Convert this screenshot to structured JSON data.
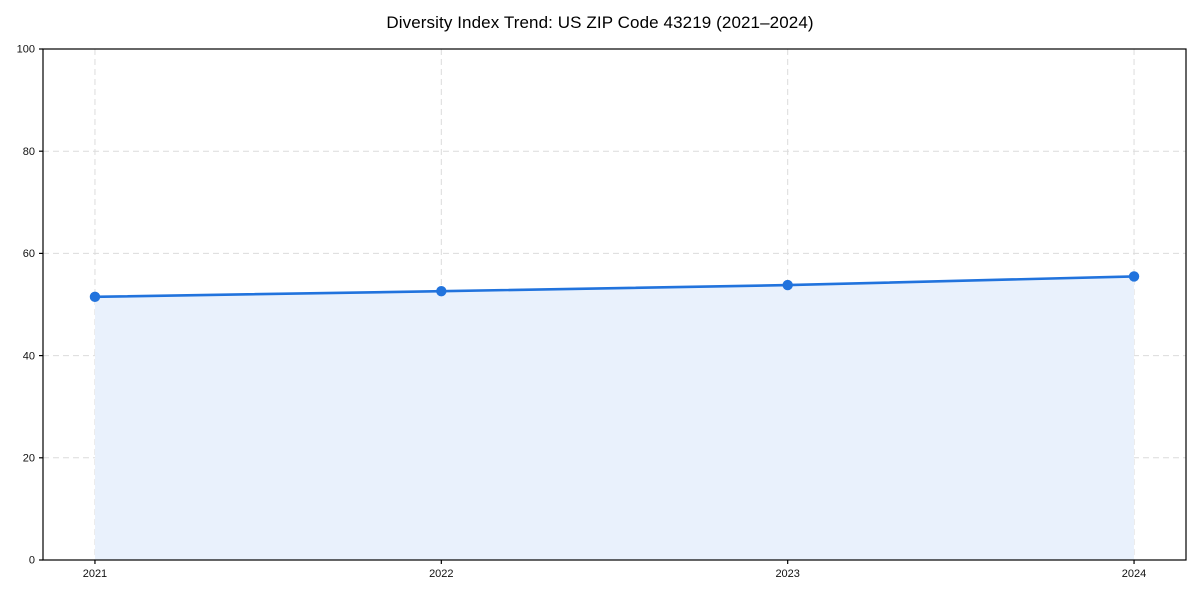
{
  "page": {
    "title": "Diversity Index Trend: US ZIP Code 43219 (2021–2024)"
  },
  "chart_data": {
    "type": "area",
    "title": "Diversity Index Trend: US ZIP Code 43219 (2021–2024)",
    "x": [
      2021,
      2022,
      2023,
      2024
    ],
    "x_tick_labels": [
      "2021",
      "2022",
      "2023",
      "2024"
    ],
    "series": [
      {
        "name": "Diversity Index",
        "values": [
          51.5,
          52.6,
          53.8,
          55.5
        ]
      }
    ],
    "xlabel": "",
    "ylabel": "",
    "ylim": [
      0,
      100
    ],
    "yticks": [
      0,
      20,
      40,
      60,
      80,
      100
    ],
    "grid": true,
    "grid_style": "dashed",
    "legend_position": "none",
    "colors": {
      "line": "#2173dd",
      "marker": "#2173dd",
      "fill": "#e9f1fc",
      "grid": "#dcdcdc",
      "frame": "#000000",
      "tick_text": "#111111",
      "background": "#ffffff"
    }
  }
}
